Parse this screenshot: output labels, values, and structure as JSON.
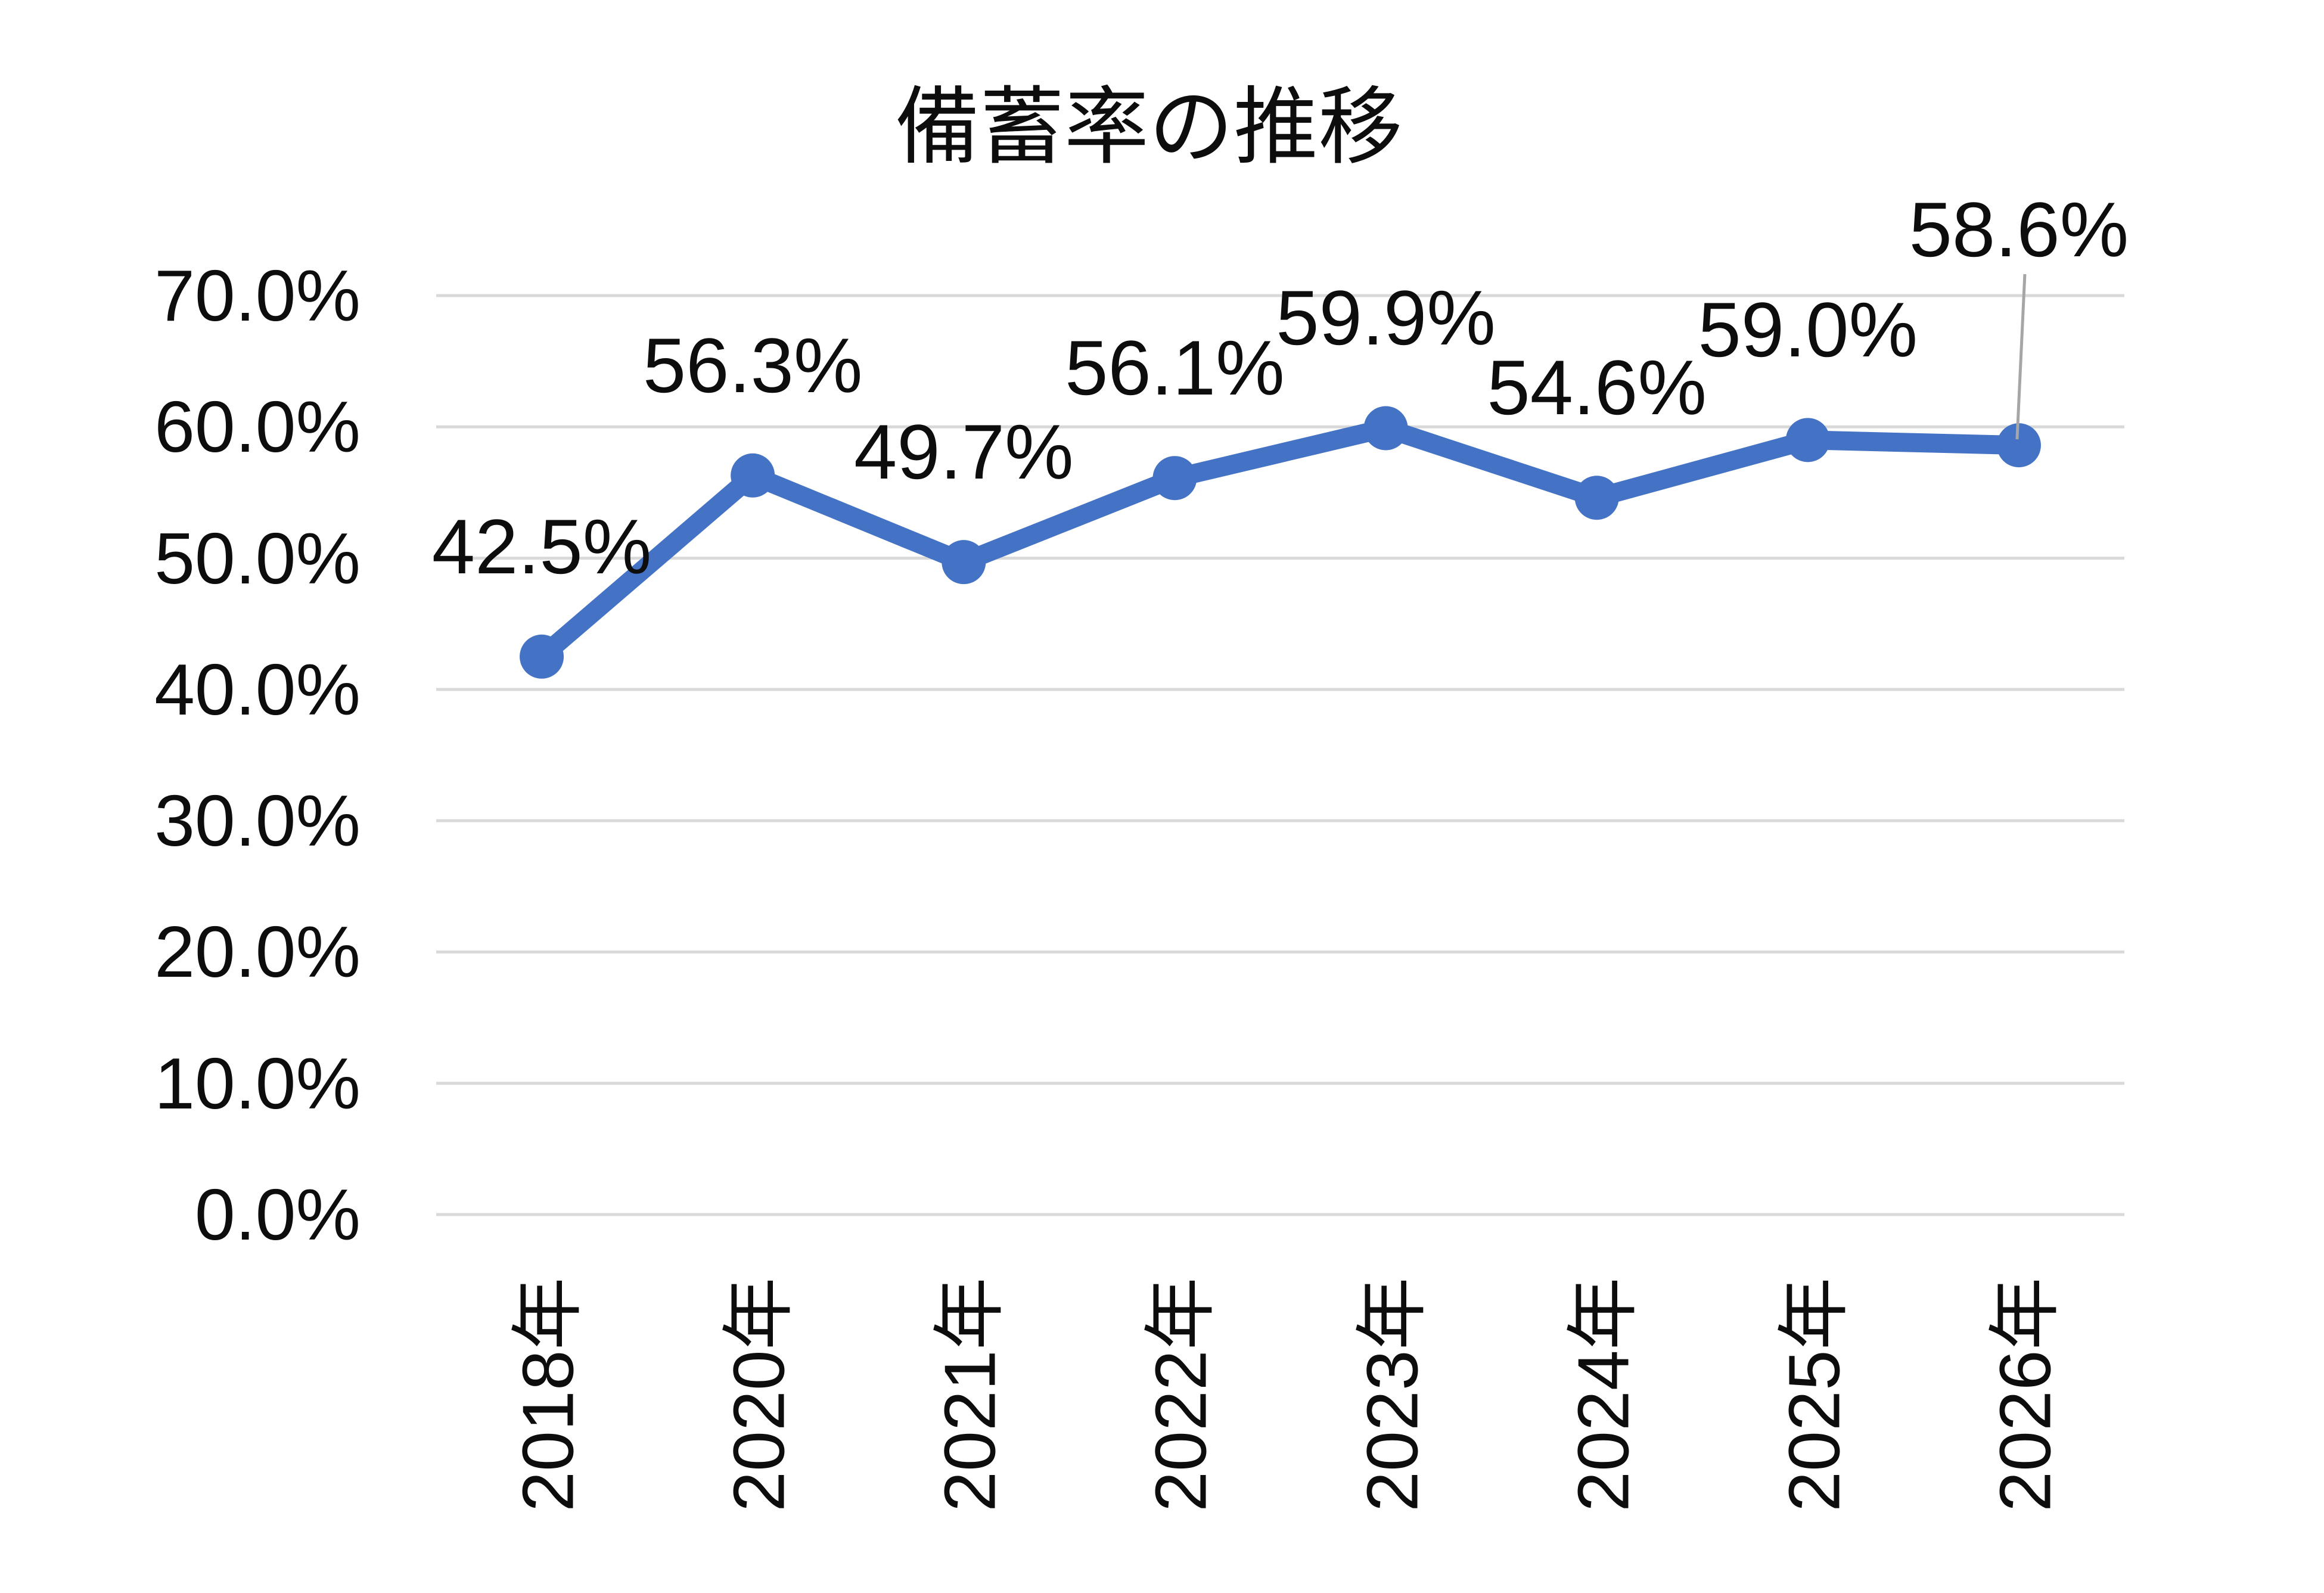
{
  "chart_data": {
    "type": "line",
    "title": "備蓄率の推移",
    "categories": [
      "2018年",
      "2020年",
      "2021年",
      "2022年",
      "2023年",
      "2024年",
      "2025年",
      "2026年"
    ],
    "values": [
      42.5,
      56.3,
      49.7,
      56.1,
      59.9,
      54.6,
      59.0,
      58.6
    ],
    "data_labels": [
      "42.5%",
      "56.3%",
      "49.7%",
      "56.1%",
      "59.9%",
      "54.6%",
      "59.0%",
      "58.6%"
    ],
    "xlabel": "",
    "ylabel": "",
    "ylim": [
      0,
      70
    ],
    "ytick_step": 10,
    "ytick_labels": [
      "0.0%",
      "10.0%",
      "20.0%",
      "30.0%",
      "40.0%",
      "50.0%",
      "60.0%",
      "70.0%"
    ],
    "grid": "horizontal-only",
    "legend": "none",
    "x_tick_label_rotation_degrees": 90,
    "markers": "filled-circle",
    "last_point_has_leader_line": true,
    "colors": {
      "series_line": "#4472C4",
      "marker_fill": "#4472C4",
      "gridline": "#D9D9D9",
      "leader_line": "#A6A6A6",
      "text": "#0D0D0D",
      "background": "#FFFFFF"
    }
  }
}
